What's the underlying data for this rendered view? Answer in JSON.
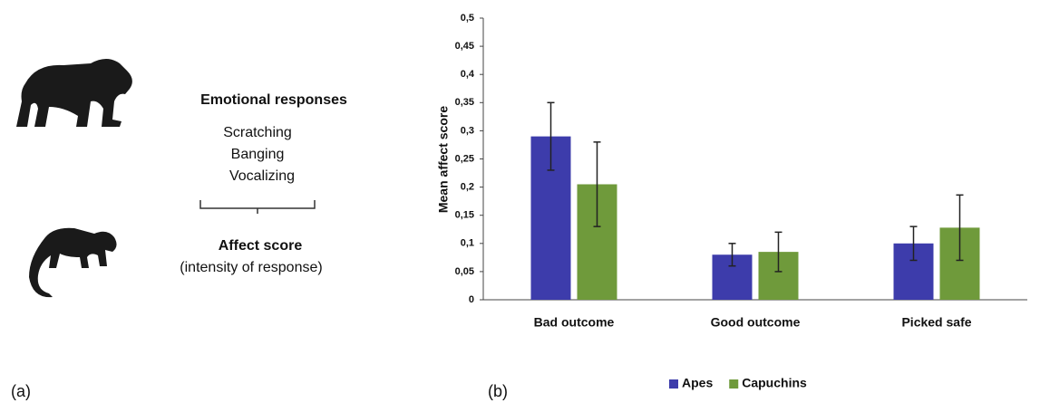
{
  "panel_a": {
    "label": "(a)",
    "heading": "Emotional responses",
    "responses": [
      "Scratching",
      "Banging",
      "Vocalizing"
    ],
    "result_title": "Affect score",
    "result_subtitle": "(intensity of response)"
  },
  "chart_data": {
    "type": "bar",
    "panel_label": "(b)",
    "y_label": "Mean affect score",
    "categories": [
      "Bad outcome",
      "Good outcome",
      "Picked safe"
    ],
    "series": [
      {
        "name": "Apes",
        "color": "#3d3cab",
        "values": [
          0.29,
          0.08,
          0.1
        ],
        "errors": [
          0.06,
          0.02,
          0.03
        ]
      },
      {
        "name": "Capuchins",
        "color": "#6f9a3b",
        "values": [
          0.205,
          0.085,
          0.128
        ],
        "errors": [
          0.075,
          0.035,
          0.058
        ]
      }
    ],
    "ylim": [
      0,
      0.5
    ],
    "yticks": [
      0,
      {
        "value": 0.05,
        "label": "0,05"
      },
      {
        "value": 0.1,
        "label": "0,1"
      },
      {
        "value": 0.15,
        "label": "0,15"
      },
      {
        "value": 0.2,
        "label": "0,2"
      },
      {
        "value": 0.25,
        "label": "0,25"
      },
      {
        "value": 0.3,
        "label": "0,3"
      },
      {
        "value": 0.35,
        "label": "0,35"
      },
      {
        "value": 0.4,
        "label": "0,4"
      },
      {
        "value": 0.45,
        "label": "0,45"
      },
      {
        "value": 0.5,
        "label": "0,5"
      }
    ],
    "grid": false,
    "legend": "bottom"
  }
}
